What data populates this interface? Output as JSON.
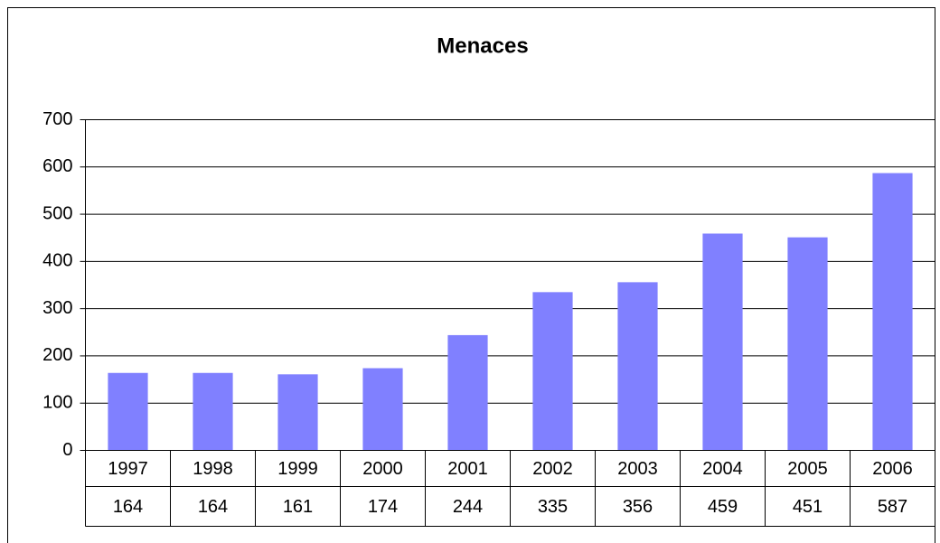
{
  "chart_data": {
    "type": "bar",
    "title": "Menaces",
    "categories": [
      "1997",
      "1998",
      "1999",
      "2000",
      "2001",
      "2002",
      "2003",
      "2004",
      "2005",
      "2006"
    ],
    "values": [
      164,
      164,
      161,
      174,
      244,
      335,
      356,
      459,
      451,
      587
    ],
    "color": "#8080ff",
    "ylim": [
      0,
      700
    ],
    "yticks": [
      0,
      100,
      200,
      300,
      400,
      500,
      600,
      700
    ],
    "grid": true
  }
}
